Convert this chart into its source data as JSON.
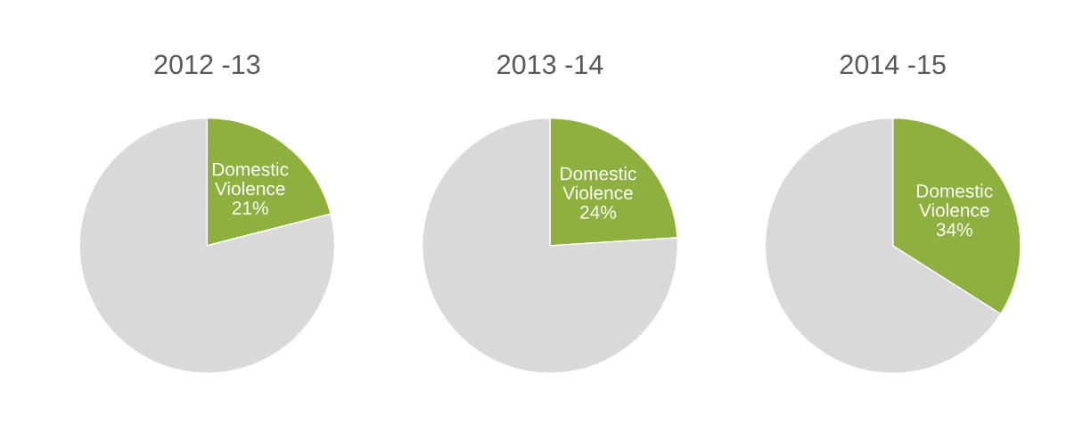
{
  "chart_data": [
    {
      "type": "pie",
      "title": "2012 -13",
      "categories": [
        "Domestic Violence",
        null
      ],
      "values": [
        21,
        79
      ],
      "colors": [
        "#8db03e",
        "#d9d9d9"
      ],
      "value_labels": [
        "21%",
        null
      ]
    },
    {
      "type": "pie",
      "title": "2013 -14",
      "categories": [
        "Domestic Violence",
        null
      ],
      "values": [
        24,
        76
      ],
      "colors": [
        "#8db03e",
        "#d9d9d9"
      ],
      "value_labels": [
        "24%",
        null
      ]
    },
    {
      "type": "pie",
      "title": "2014 -15",
      "categories": [
        "Domestic Violence",
        null
      ],
      "values": [
        34,
        66
      ],
      "colors": [
        "#8db03e",
        "#d9d9d9"
      ],
      "value_labels": [
        "34%",
        null
      ]
    }
  ]
}
